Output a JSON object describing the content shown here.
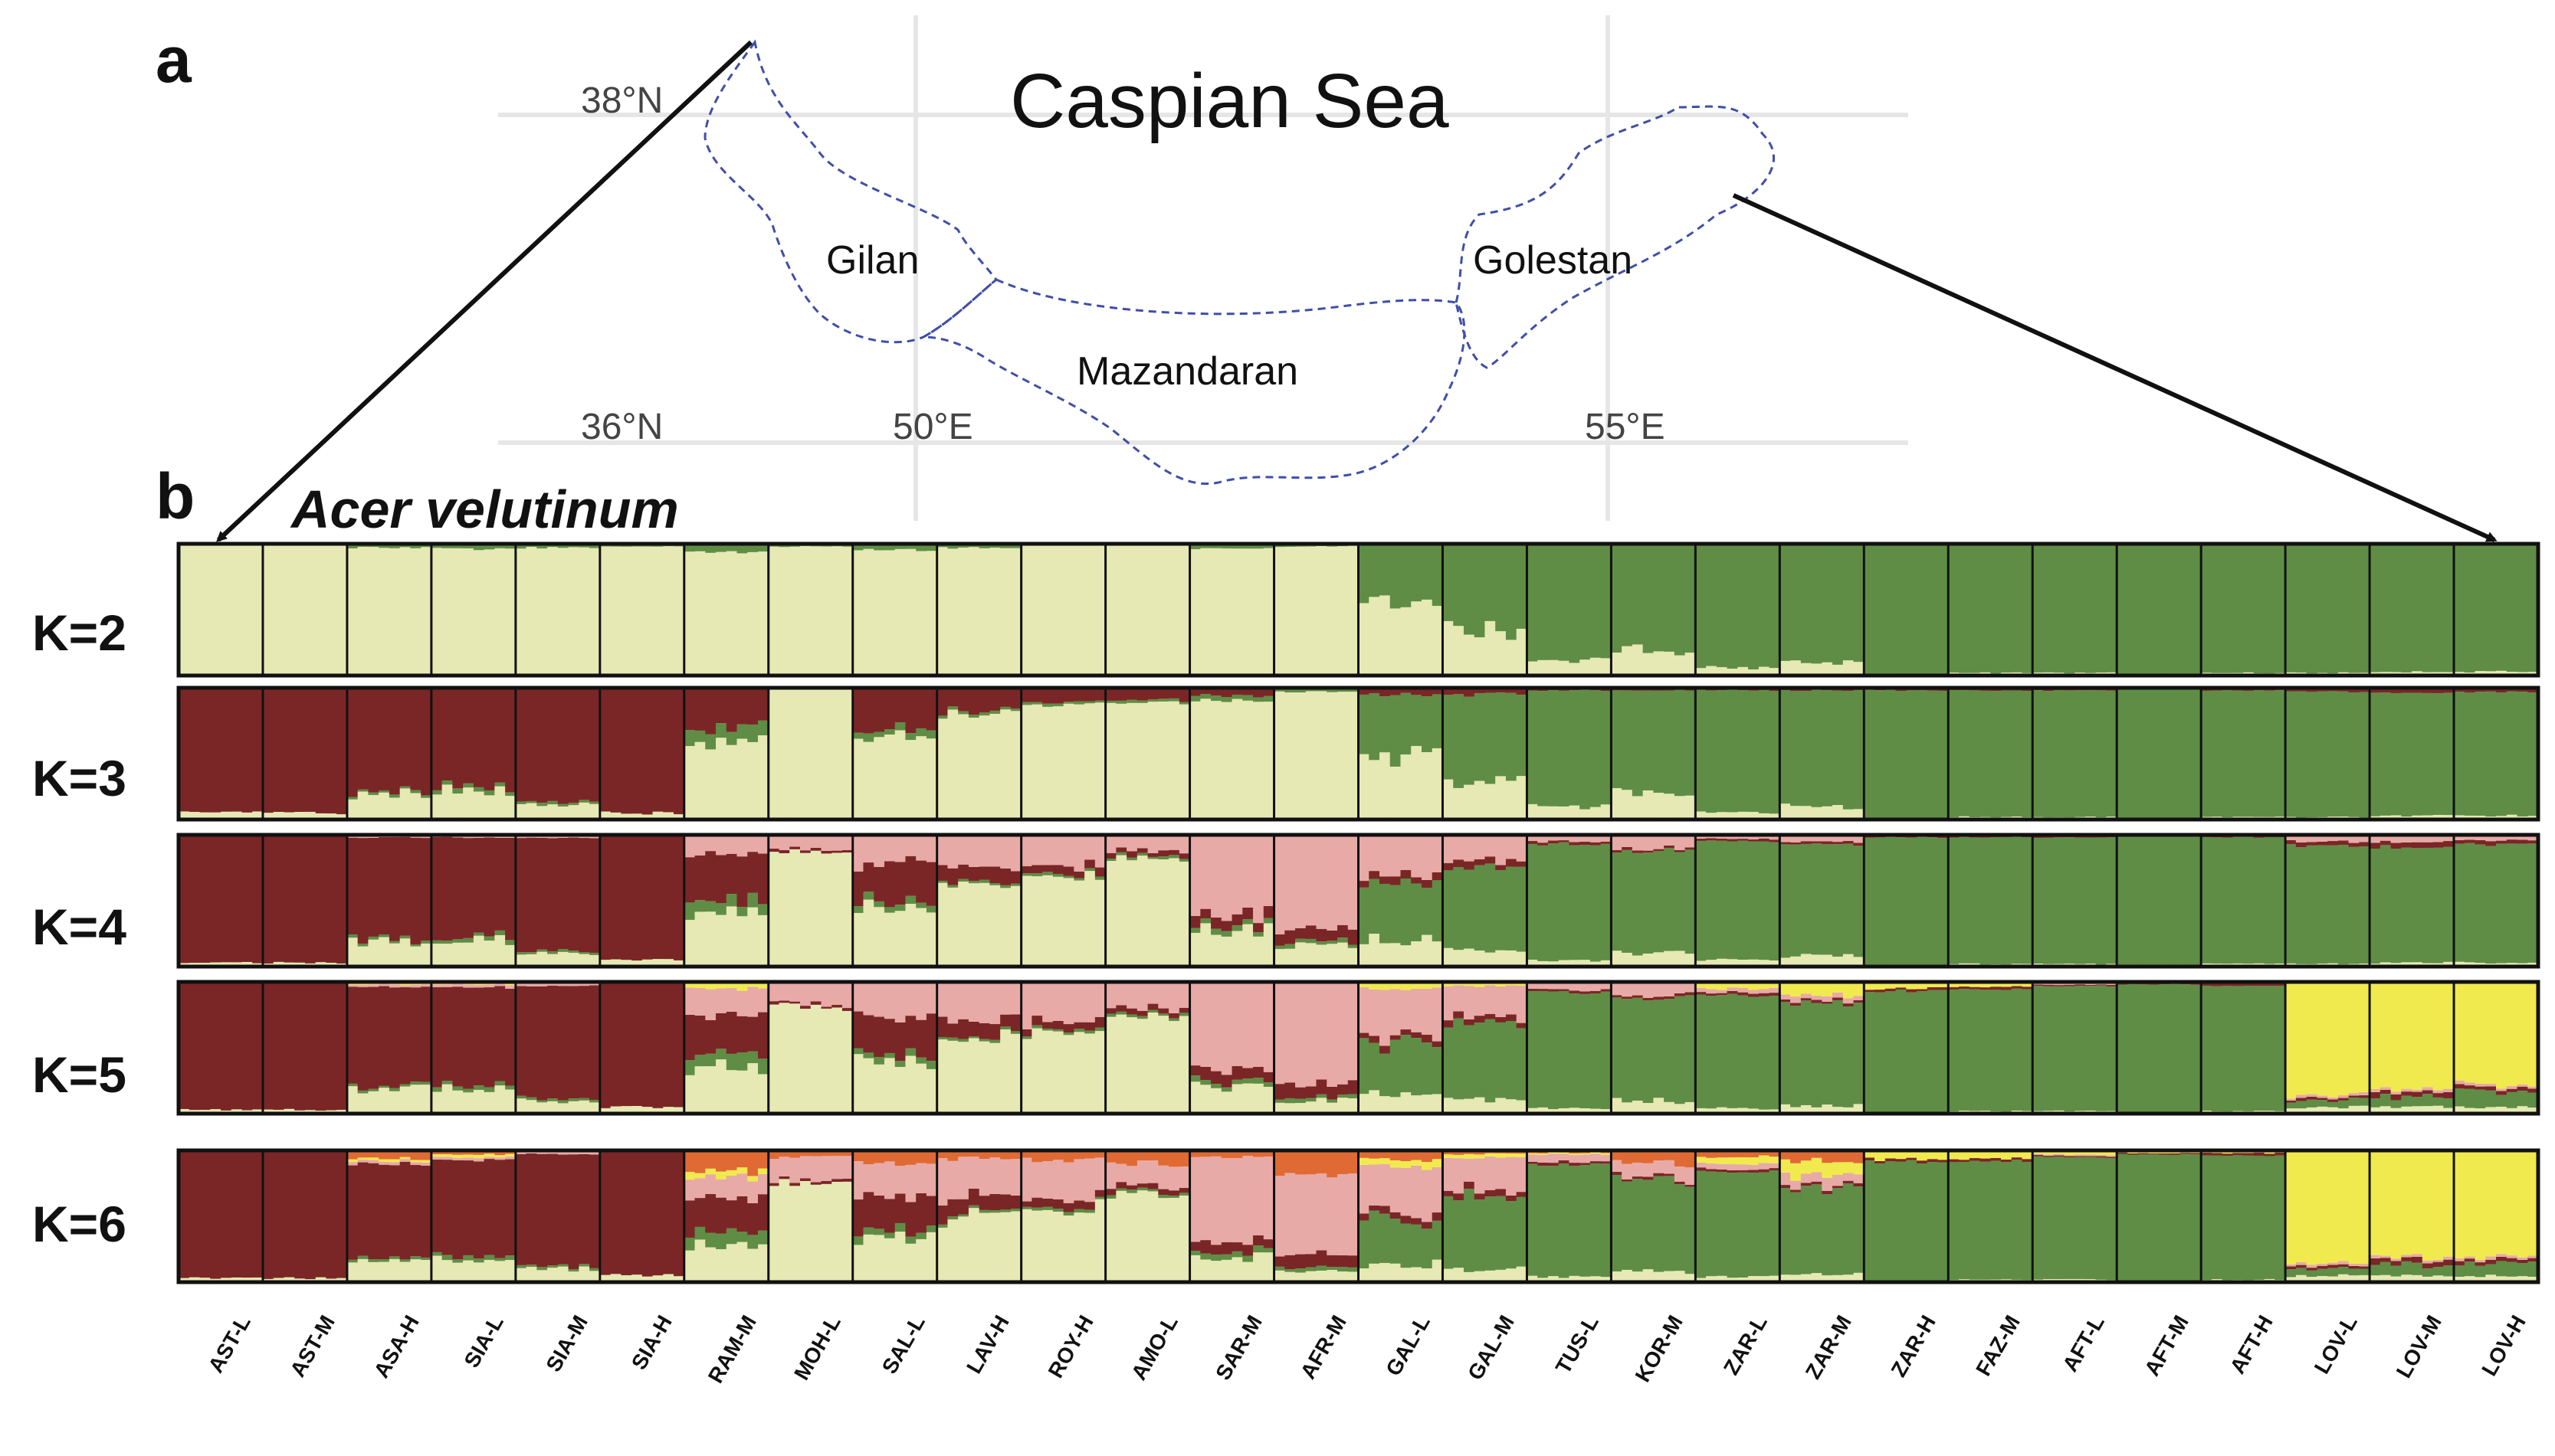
{
  "panel_a": {
    "letter": "a",
    "sea_label": "Caspian Sea",
    "provinces": [
      "Gilan",
      "Mazandaran",
      "Golestan"
    ],
    "latitudes": [
      "38°N",
      "36°N"
    ],
    "longitudes": [
      "50°E",
      "55°E"
    ]
  },
  "panel_b": {
    "letter": "b",
    "species": "Acer velutinum",
    "k_labels": [
      "K=2",
      "K=3",
      "K=4",
      "K=5",
      "K=6"
    ]
  },
  "colors": {
    "cluster_light": "#e6e9b4",
    "cluster_green": "#5f8d45",
    "cluster_darkred": "#7a2626",
    "cluster_pink": "#e8aaa6",
    "cluster_yellow": "#f1ea4e",
    "cluster_orange": "#e06a34",
    "border_dash": "#3f4fa8",
    "grid": "#e6e6e6"
  },
  "chart_data": {
    "type": "stacked-bar",
    "categories": [
      "AST-L",
      "AST-M",
      "ASA-H",
      "SIA-L",
      "SIA-M",
      "SIA-H",
      "RAM-M",
      "MOH-L",
      "SAL-L",
      "LAV-H",
      "ROY-H",
      "AMO-L",
      "SAR-M",
      "AFR-M",
      "GAL-L",
      "GAL-M",
      "TUS-L",
      "KOR-M",
      "ZAR-L",
      "ZAR-M",
      "ZAR-H",
      "FAZ-M",
      "AFT-L",
      "AFT-M",
      "AFT-H",
      "LOV-L",
      "LOV-M",
      "LOV-H"
    ],
    "clusters": [
      "light",
      "green",
      "darkred",
      "pink",
      "yellow",
      "orange"
    ],
    "rows": [
      {
        "k": 2,
        "proportions": [
          [
            1,
            0
          ],
          [
            1,
            0
          ],
          [
            0.97,
            0.03
          ],
          [
            0.96,
            0.04
          ],
          [
            0.97,
            0.03
          ],
          [
            0.98,
            0.02
          ],
          [
            0.93,
            0.07
          ],
          [
            0.98,
            0.02
          ],
          [
            0.95,
            0.05
          ],
          [
            0.97,
            0.03
          ],
          [
            0.99,
            0.01
          ],
          [
            0.99,
            0.01
          ],
          [
            0.96,
            0.04
          ],
          [
            0.98,
            0.02
          ],
          [
            0.55,
            0.45
          ],
          [
            0.35,
            0.65
          ],
          [
            0.12,
            0.88
          ],
          [
            0.2,
            0.8
          ],
          [
            0.06,
            0.94
          ],
          [
            0.1,
            0.9
          ],
          [
            0.01,
            0.99
          ],
          [
            0.02,
            0.98
          ],
          [
            0.02,
            0.98
          ],
          [
            0.01,
            0.99
          ],
          [
            0.02,
            0.98
          ],
          [
            0.02,
            0.98
          ],
          [
            0.03,
            0.97
          ],
          [
            0.03,
            0.97
          ]
        ]
      },
      {
        "k": 3,
        "proportions": [
          [
            0.05,
            0,
            0.95
          ],
          [
            0.05,
            0,
            0.95
          ],
          [
            0.2,
            0.02,
            0.78
          ],
          [
            0.22,
            0.03,
            0.75
          ],
          [
            0.12,
            0.02,
            0.86
          ],
          [
            0.05,
            0,
            0.95
          ],
          [
            0.6,
            0.1,
            0.3
          ],
          [
            1,
            0,
            0
          ],
          [
            0.6,
            0.05,
            0.35
          ],
          [
            0.8,
            0.02,
            0.18
          ],
          [
            0.88,
            0.02,
            0.1
          ],
          [
            0.88,
            0.02,
            0.1
          ],
          [
            0.9,
            0.04,
            0.06
          ],
          [
            0.97,
            0.03,
            0
          ],
          [
            0.5,
            0.45,
            0.05
          ],
          [
            0.3,
            0.65,
            0.05
          ],
          [
            0.1,
            0.88,
            0.02
          ],
          [
            0.2,
            0.78,
            0.02
          ],
          [
            0.05,
            0.93,
            0.02
          ],
          [
            0.1,
            0.88,
            0.02
          ],
          [
            0.01,
            0.97,
            0.02
          ],
          [
            0.02,
            0.96,
            0.02
          ],
          [
            0.02,
            0.96,
            0.02
          ],
          [
            0.01,
            0.98,
            0.01
          ],
          [
            0.02,
            0.96,
            0.02
          ],
          [
            0.02,
            0.95,
            0.03
          ],
          [
            0.03,
            0.93,
            0.04
          ],
          [
            0.03,
            0.94,
            0.03
          ]
        ]
      },
      {
        "k": 4,
        "proportions": [
          [
            0.03,
            0,
            0.97,
            0
          ],
          [
            0.03,
            0,
            0.97,
            0
          ],
          [
            0.18,
            0.02,
            0.78,
            0.02
          ],
          [
            0.2,
            0.03,
            0.75,
            0.02
          ],
          [
            0.1,
            0.02,
            0.86,
            0.02
          ],
          [
            0.05,
            0,
            0.95,
            0
          ],
          [
            0.4,
            0.1,
            0.35,
            0.15
          ],
          [
            0.88,
            0,
            0.02,
            0.1
          ],
          [
            0.45,
            0.05,
            0.3,
            0.2
          ],
          [
            0.6,
            0.02,
            0.12,
            0.26
          ],
          [
            0.7,
            0.02,
            0.06,
            0.22
          ],
          [
            0.82,
            0.02,
            0.04,
            0.12
          ],
          [
            0.28,
            0.04,
            0.08,
            0.6
          ],
          [
            0.15,
            0.03,
            0.1,
            0.72
          ],
          [
            0.2,
            0.45,
            0.05,
            0.3
          ],
          [
            0.12,
            0.65,
            0.05,
            0.18
          ],
          [
            0.05,
            0.88,
            0.02,
            0.05
          ],
          [
            0.1,
            0.78,
            0.02,
            0.1
          ],
          [
            0.05,
            0.9,
            0.02,
            0.03
          ],
          [
            0.08,
            0.85,
            0.02,
            0.05
          ],
          [
            0.01,
            0.97,
            0.02,
            0
          ],
          [
            0.02,
            0.96,
            0.02,
            0
          ],
          [
            0.02,
            0.96,
            0.01,
            0.01
          ],
          [
            0.01,
            0.98,
            0.01,
            0
          ],
          [
            0.02,
            0.96,
            0.02,
            0
          ],
          [
            0.02,
            0.9,
            0.03,
            0.05
          ],
          [
            0.03,
            0.88,
            0.04,
            0.05
          ],
          [
            0.03,
            0.9,
            0.03,
            0.04
          ]
        ]
      },
      {
        "k": 5,
        "proportions": [
          [
            0.03,
            0,
            0.97,
            0,
            0
          ],
          [
            0.03,
            0,
            0.97,
            0,
            0
          ],
          [
            0.18,
            0.02,
            0.76,
            0.02,
            0.02
          ],
          [
            0.2,
            0.03,
            0.73,
            0.02,
            0.02
          ],
          [
            0.1,
            0.02,
            0.85,
            0.02,
            0.01
          ],
          [
            0.05,
            0,
            0.95,
            0,
            0
          ],
          [
            0.35,
            0.1,
            0.3,
            0.2,
            0.05
          ],
          [
            0.8,
            0,
            0.02,
            0.18,
            0
          ],
          [
            0.4,
            0.05,
            0.3,
            0.25,
            0
          ],
          [
            0.55,
            0.02,
            0.12,
            0.31,
            0
          ],
          [
            0.62,
            0.02,
            0.06,
            0.3,
            0
          ],
          [
            0.75,
            0.02,
            0.04,
            0.19,
            0
          ],
          [
            0.22,
            0.04,
            0.08,
            0.66,
            0
          ],
          [
            0.1,
            0.03,
            0.1,
            0.77,
            0
          ],
          [
            0.15,
            0.4,
            0.05,
            0.35,
            0.05
          ],
          [
            0.1,
            0.6,
            0.05,
            0.22,
            0.03
          ],
          [
            0.04,
            0.88,
            0.02,
            0.05,
            0.01
          ],
          [
            0.1,
            0.78,
            0.02,
            0.1,
            0
          ],
          [
            0.04,
            0.86,
            0.02,
            0.03,
            0.05
          ],
          [
            0.06,
            0.78,
            0.02,
            0.04,
            0.1
          ],
          [
            0.01,
            0.92,
            0.02,
            0,
            0.05
          ],
          [
            0.02,
            0.92,
            0.02,
            0,
            0.04
          ],
          [
            0.02,
            0.95,
            0.01,
            0.01,
            0.01
          ],
          [
            0.01,
            0.97,
            0.01,
            0,
            0.01
          ],
          [
            0.02,
            0.95,
            0.02,
            0,
            0.01
          ],
          [
            0.05,
            0.05,
            0.02,
            0.02,
            0.86
          ],
          [
            0.05,
            0.08,
            0.04,
            0.02,
            0.81
          ],
          [
            0.05,
            0.12,
            0.03,
            0.02,
            0.78
          ]
        ]
      },
      {
        "k": 6,
        "proportions": [
          [
            0.03,
            0,
            0.97,
            0,
            0,
            0
          ],
          [
            0.03,
            0,
            0.97,
            0,
            0,
            0
          ],
          [
            0.15,
            0.02,
            0.73,
            0.02,
            0.02,
            0.06
          ],
          [
            0.18,
            0.03,
            0.72,
            0.02,
            0.02,
            0.03
          ],
          [
            0.1,
            0.02,
            0.85,
            0.02,
            0.01,
            0
          ],
          [
            0.05,
            0,
            0.95,
            0,
            0,
            0
          ],
          [
            0.3,
            0.1,
            0.25,
            0.15,
            0.05,
            0.15
          ],
          [
            0.75,
            0,
            0.02,
            0.18,
            0,
            0.05
          ],
          [
            0.35,
            0.05,
            0.25,
            0.25,
            0,
            0.1
          ],
          [
            0.5,
            0.02,
            0.12,
            0.3,
            0,
            0.06
          ],
          [
            0.55,
            0.02,
            0.06,
            0.3,
            0,
            0.07
          ],
          [
            0.68,
            0.02,
            0.04,
            0.16,
            0,
            0.1
          ],
          [
            0.2,
            0.04,
            0.08,
            0.63,
            0,
            0.05
          ],
          [
            0.08,
            0.03,
            0.1,
            0.6,
            0,
            0.19
          ],
          [
            0.13,
            0.35,
            0.05,
            0.35,
            0.05,
            0.07
          ],
          [
            0.1,
            0.55,
            0.05,
            0.24,
            0.03,
            0.03
          ],
          [
            0.04,
            0.85,
            0.02,
            0.06,
            0.01,
            0.02
          ],
          [
            0.08,
            0.68,
            0.02,
            0.12,
            0,
            0.1
          ],
          [
            0.04,
            0.8,
            0.02,
            0.04,
            0.05,
            0.05
          ],
          [
            0.06,
            0.66,
            0.02,
            0.08,
            0.1,
            0.08
          ],
          [
            0.01,
            0.9,
            0.02,
            0,
            0.07,
            0
          ],
          [
            0.02,
            0.9,
            0.02,
            0,
            0.06,
            0
          ],
          [
            0.02,
            0.93,
            0.01,
            0.01,
            0.03,
            0
          ],
          [
            0.01,
            0.96,
            0.01,
            0,
            0.02,
            0
          ],
          [
            0.02,
            0.94,
            0.02,
            0,
            0.02,
            0
          ],
          [
            0.05,
            0.05,
            0.02,
            0.02,
            0.86,
            0
          ],
          [
            0.05,
            0.08,
            0.04,
            0.02,
            0.81,
            0
          ],
          [
            0.05,
            0.1,
            0.03,
            0.02,
            0.8,
            0
          ]
        ]
      }
    ]
  }
}
